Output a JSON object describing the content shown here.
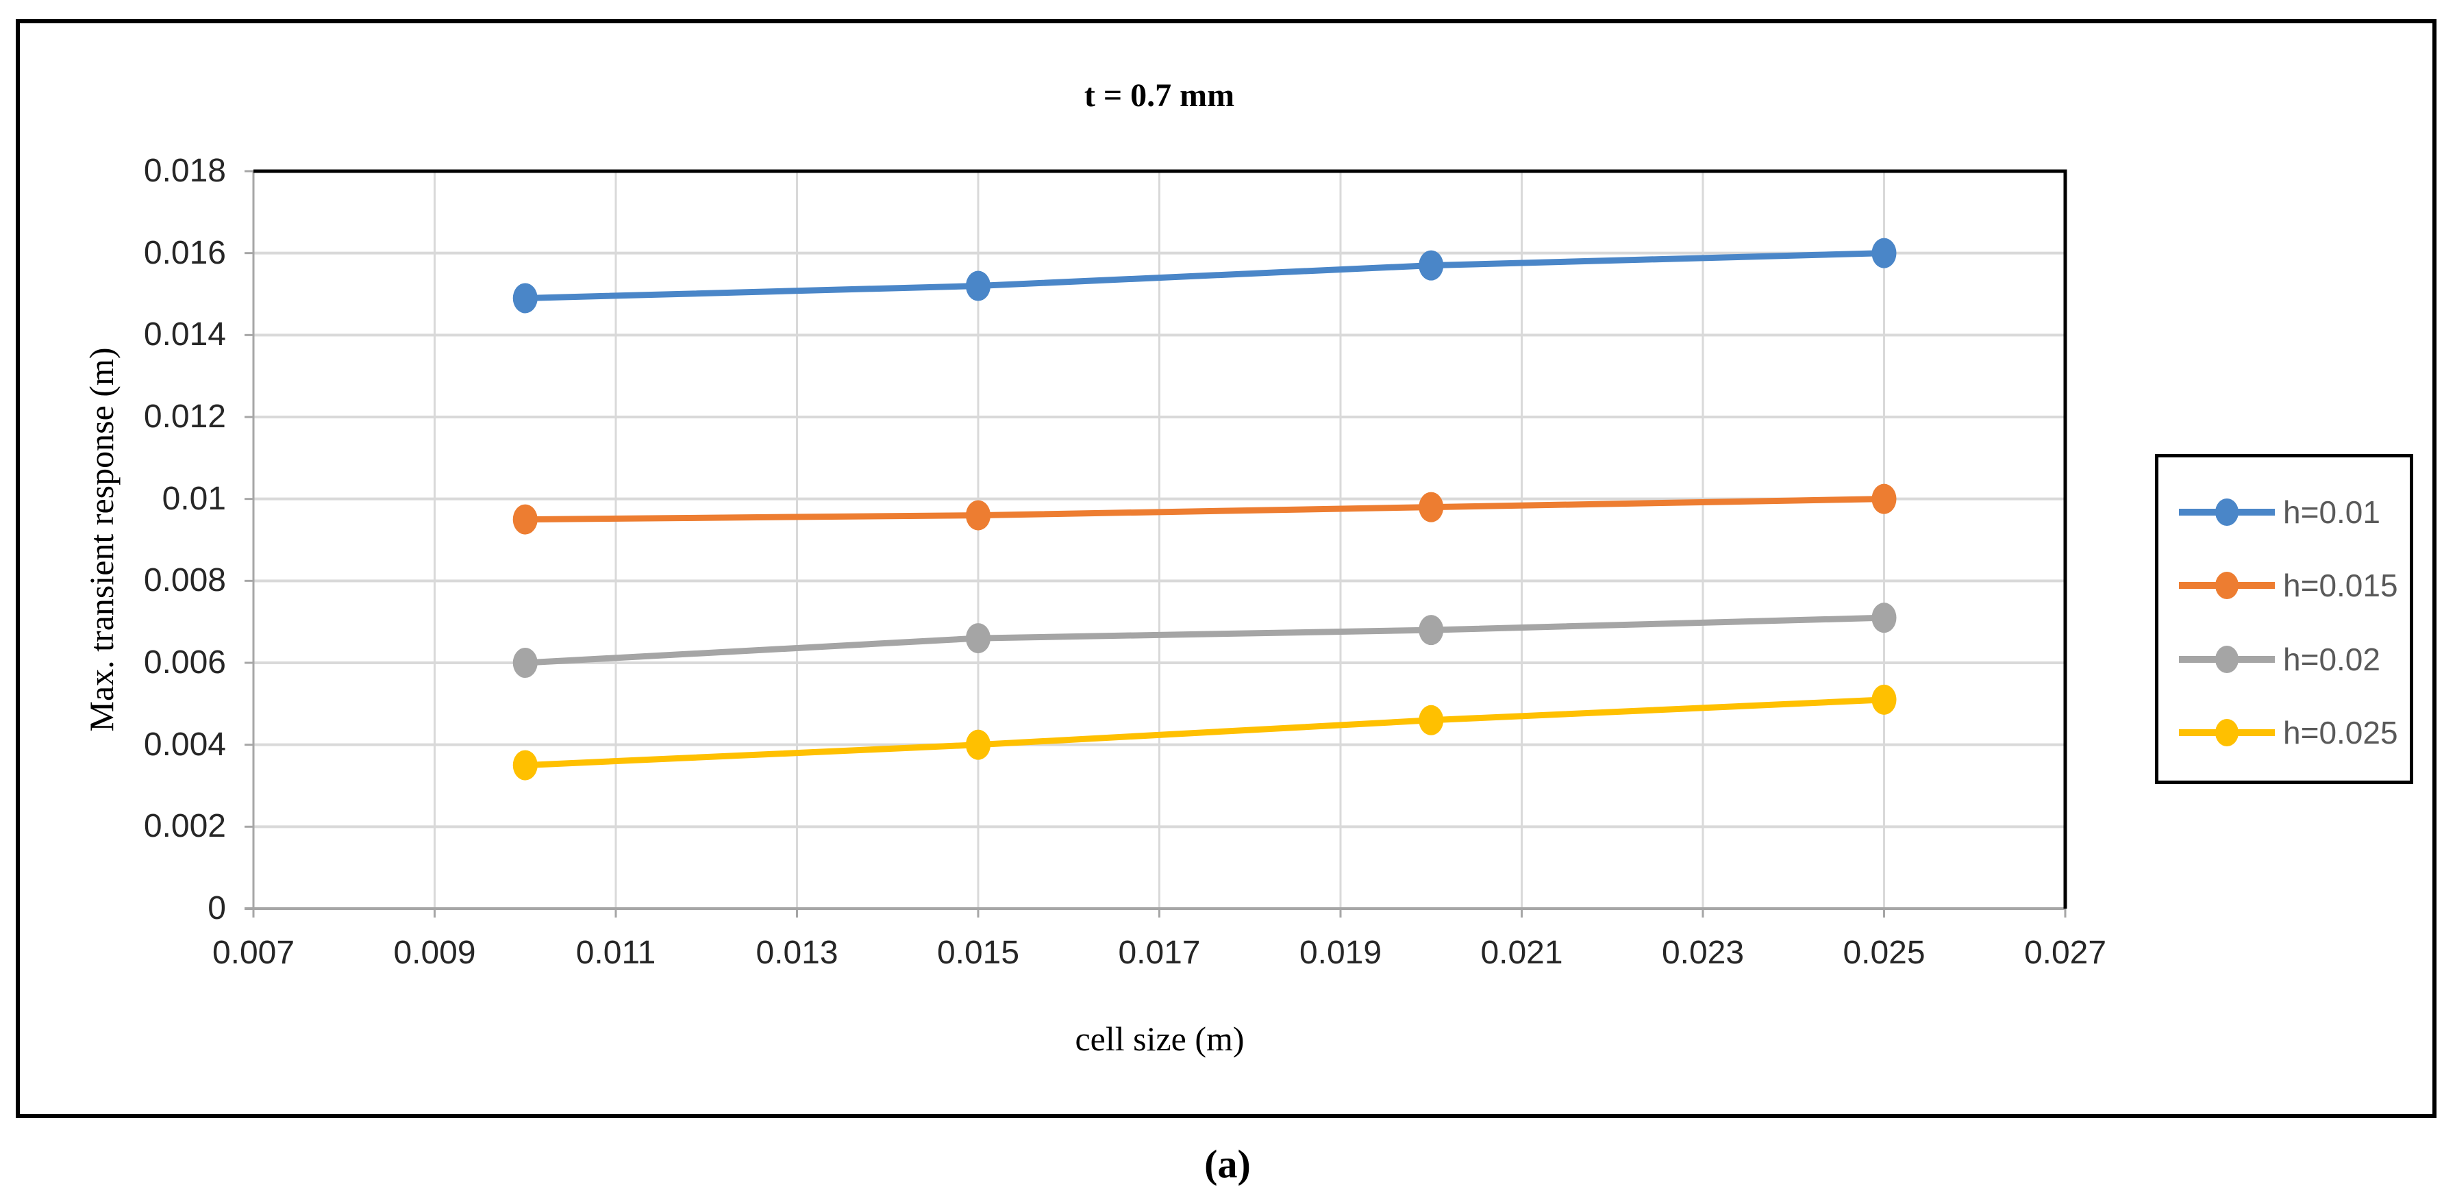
{
  "caption": "(a)",
  "chart_data": {
    "type": "line",
    "title": "t = 0.7 mm",
    "xlabel": "cell size (m)",
    "ylabel": "Max. transient response (m)",
    "xlim": [
      0.007,
      0.027
    ],
    "ylim": [
      0,
      0.018
    ],
    "grid": true,
    "legend_position": "right-outside",
    "x_ticks": [
      "0.007",
      "0.009",
      "0.011",
      "0.013",
      "0.015",
      "0.017",
      "0.019",
      "0.021",
      "0.023",
      "0.025",
      "0.027"
    ],
    "y_ticks": [
      "0",
      "0.002",
      "0.004",
      "0.006",
      "0.008",
      "0.01",
      "0.012",
      "0.014",
      "0.016",
      "0.018"
    ],
    "x": [
      0.01,
      0.015,
      0.02,
      0.025
    ],
    "series": [
      {
        "name": "h=0.01",
        "color": "#4A86C8",
        "values": [
          0.0149,
          0.0152,
          0.0157,
          0.016
        ]
      },
      {
        "name": "h=0.015",
        "color": "#ED7D31",
        "values": [
          0.0095,
          0.0096,
          0.0098,
          0.01
        ]
      },
      {
        "name": "h=0.02",
        "color": "#A5A5A5",
        "values": [
          0.006,
          0.0066,
          0.0068,
          0.0071
        ]
      },
      {
        "name": "h=0.025",
        "color": "#FFC000",
        "values": [
          0.0035,
          0.004,
          0.0046,
          0.0051
        ]
      }
    ],
    "colors": {
      "gridline": "#D9D9D9",
      "axis_line": "#A6A6A6",
      "plot_border": "#000000",
      "tick_label": "#262626",
      "legend_text": "#595959",
      "figure_border": "#000000"
    }
  }
}
